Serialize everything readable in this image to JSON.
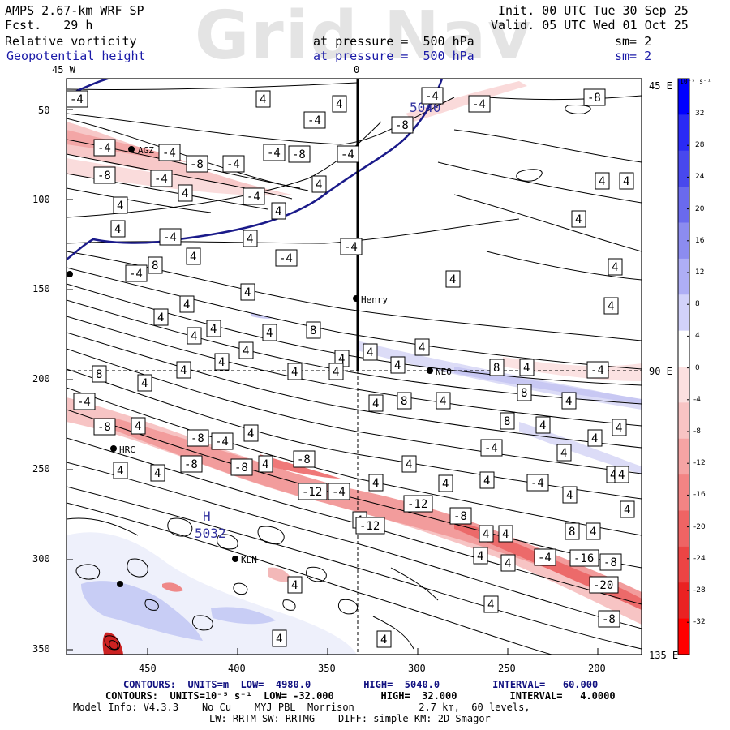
{
  "header": {
    "model_title": "AMPS 2.67-km WRF SP",
    "forecast": "Fcst.   29 h",
    "init": "Init. 00 UTC Tue 30 Sep 25",
    "valid": "Valid. 05 UTC Wed 01 Oct 25",
    "field1_name": "Relative vorticity",
    "field1_level": "at pressure =  500 hPa",
    "field1_smooth": "sm= 2",
    "field2_name": "Geopotential height",
    "field2_level": "at pressure =  500 hPa",
    "field2_smooth": "sm= 2",
    "watermark": "Grid Nav"
  },
  "axes": {
    "top_labels": [
      "45 W",
      "0"
    ],
    "right_labels": [
      "45 E",
      "90 E",
      "135 E"
    ],
    "y_ticks": [
      "50",
      "100",
      "150",
      "200",
      "250",
      "300",
      "350"
    ],
    "x_ticks": [
      "450",
      "400",
      "350",
      "300",
      "250",
      "200"
    ]
  },
  "stations": [
    {
      "name": "AGZ"
    },
    {
      "name": "Henry"
    },
    {
      "name": "NEO"
    },
    {
      "name": "HRC"
    },
    {
      "name": "KLN"
    }
  ],
  "colorbar": {
    "unit": "10⁻⁵ s⁻¹",
    "labels": [
      "32",
      "28",
      "24",
      "20",
      "16",
      "12",
      "8",
      "4",
      "0",
      "-4",
      "-8",
      "-12",
      "-16",
      "-20",
      "-24",
      "-28",
      "-32"
    ],
    "colors": [
      "#0000ff",
      "#2a2af5",
      "#4848ee",
      "#6a6aee",
      "#8c8cf0",
      "#aeaef5",
      "#d2d2fa",
      "#ffffff",
      "#ffffff",
      "#fbe0e0",
      "#f8c4c4",
      "#f5a4a4",
      "#f28484",
      "#ef6464",
      "#ec4444",
      "#ea2222",
      "#ff0000"
    ]
  },
  "height_labels": [
    "5040",
    "5032",
    "H"
  ],
  "contour_labels": {
    "white": [
      "-4",
      "4",
      "4",
      "-4",
      "-4",
      "-8",
      "-4",
      "-8",
      "-4",
      "-4",
      "-4",
      "-8",
      "-4",
      "-8",
      "-4",
      "-8",
      "-4",
      "4",
      "4",
      "-4",
      "4",
      "4",
      "4",
      "-4",
      "4",
      "-4",
      "4",
      "-4",
      "-4",
      "8",
      "4",
      "4",
      "4",
      "4",
      "4",
      "4",
      "4",
      "4",
      "4",
      "4",
      "8",
      "4",
      "4",
      "4",
      "4",
      "4",
      "4",
      "4",
      "8",
      "4",
      "4",
      "4",
      "4",
      "8",
      "4",
      "-4",
      "8",
      "4",
      "-4",
      "4",
      "4",
      "8",
      "4",
      "4",
      "-8",
      "4",
      "8",
      "4",
      "4",
      "-8",
      "-4",
      "4",
      "-4",
      "-8",
      "4",
      "4",
      "4",
      "4",
      "-8",
      "-8",
      "4",
      "4",
      "4",
      "-4",
      "-12",
      "-4",
      "4",
      "4",
      "4",
      "4",
      "-12",
      "4",
      "-8",
      "4",
      "4",
      "4",
      "-12",
      "8",
      "4",
      "4",
      "-4",
      "-16",
      "-8",
      "4",
      "-20",
      "4",
      "4",
      "-8",
      "4",
      "4"
    ]
  },
  "footer": {
    "line1": "CONTOURS:  UNITS=m  LOW=  4980.0         HIGH=  5040.0         INTERVAL=   60.000",
    "line2": "CONTOURS:  UNITS=10⁻⁵ s⁻¹  LOW= -32.000        HIGH=  32.000         INTERVAL=   4.0000",
    "line3": "Model Info: V4.3.3    No Cu    MYJ PBL  Morrison           2.7 km,  60 levels,",
    "line4": "LW: RRTM SW: RRTMG    DIFF: simple KM: 2D Smagor"
  }
}
